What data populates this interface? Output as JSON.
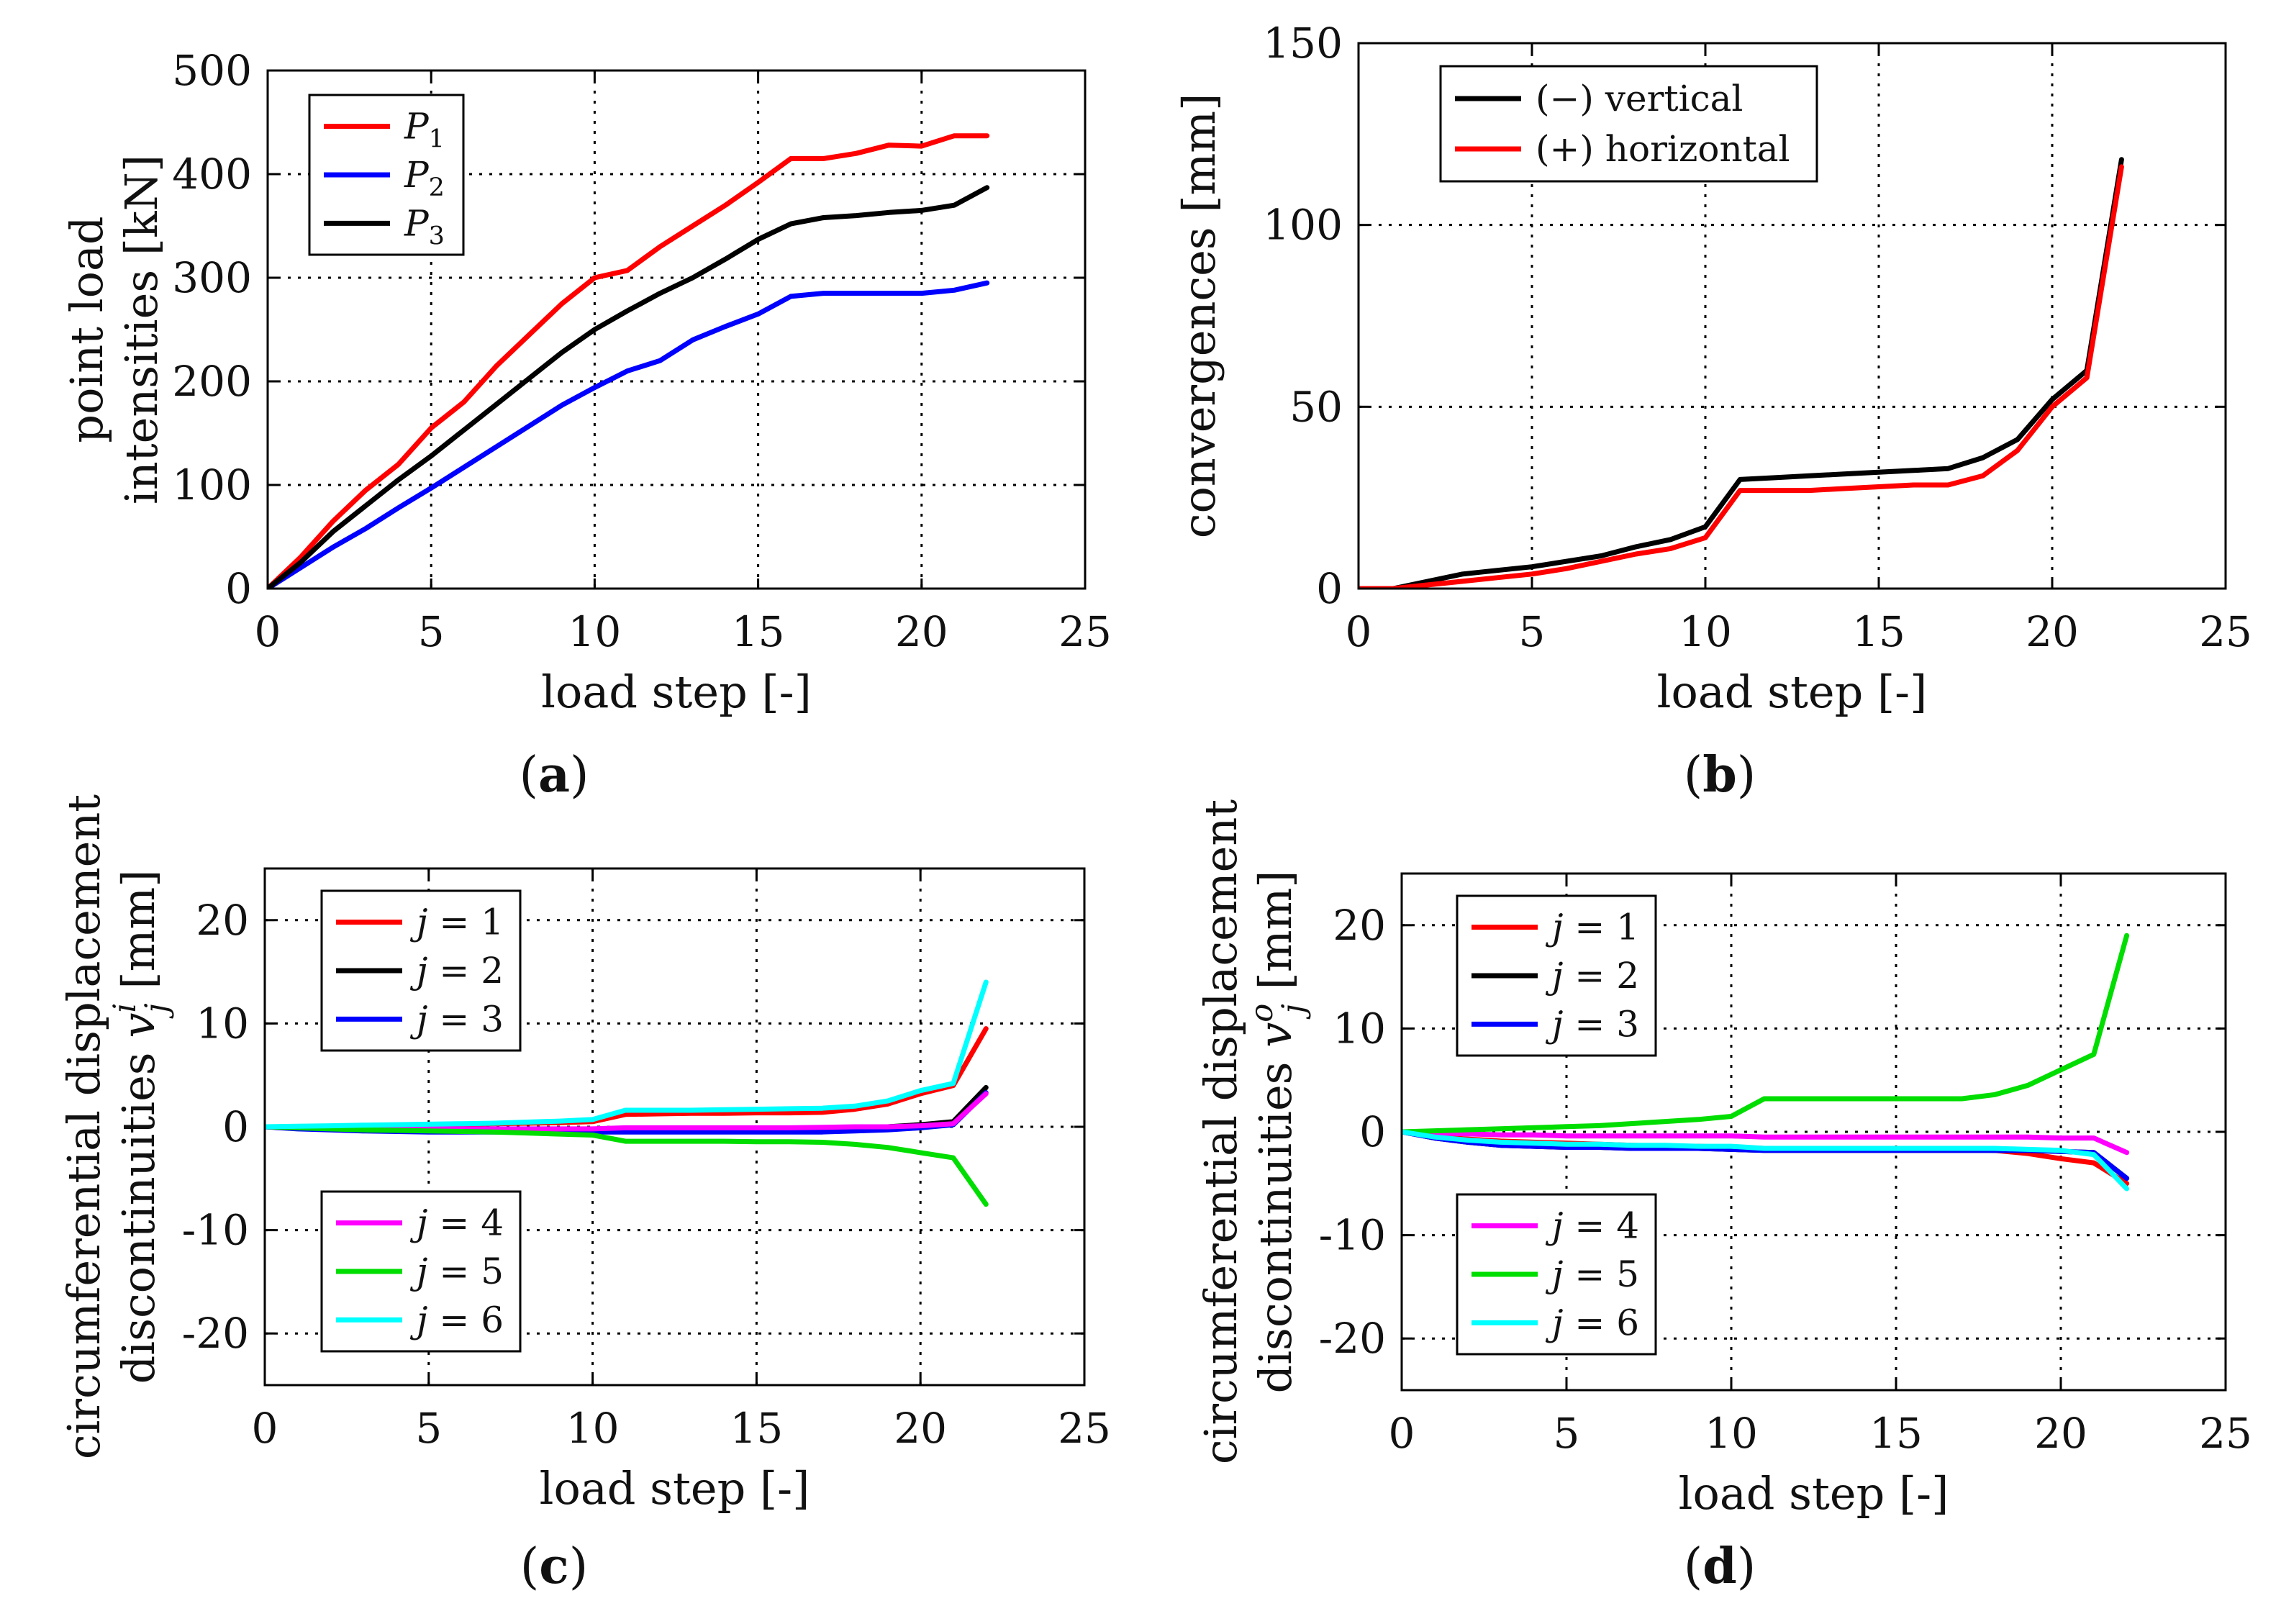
{
  "chart_data": [
    {
      "id": "a",
      "panel_label": "(a)",
      "type": "line",
      "xlabel": "load step [-]",
      "ylabel": [
        "point load",
        "intensities [kN]"
      ],
      "xlim": [
        0,
        25
      ],
      "ylim": [
        0,
        500
      ],
      "xticks": [
        0,
        5,
        10,
        15,
        20,
        25
      ],
      "yticks": [
        0,
        100,
        200,
        300,
        400,
        500
      ],
      "grid": true,
      "legend_position": "top-left",
      "series": [
        {
          "name": "P",
          "subscript": "1",
          "color": "#ff0000",
          "x": [
            0,
            1,
            2,
            3,
            4,
            5,
            6,
            7,
            8,
            9,
            10,
            11,
            12,
            13,
            14,
            15,
            16,
            17,
            18,
            19,
            20,
            21,
            22
          ],
          "y": [
            0,
            30,
            65,
            95,
            120,
            155,
            180,
            215,
            245,
            275,
            300,
            307,
            330,
            350,
            370,
            392,
            415,
            415,
            420,
            428,
            427,
            437,
            437
          ]
        },
        {
          "name": "P",
          "subscript": "2",
          "color": "#0000ff",
          "x": [
            0,
            1,
            2,
            3,
            4,
            5,
            6,
            7,
            8,
            9,
            10,
            11,
            12,
            13,
            14,
            15,
            16,
            17,
            18,
            19,
            20,
            21,
            22
          ],
          "y": [
            0,
            20,
            40,
            58,
            78,
            97,
            117,
            137,
            157,
            177,
            194,
            210,
            220,
            240,
            253,
            265,
            282,
            285,
            285,
            285,
            285,
            288,
            295
          ]
        },
        {
          "name": "P",
          "subscript": "3",
          "color": "#000000",
          "x": [
            0,
            1,
            2,
            3,
            4,
            5,
            6,
            7,
            8,
            9,
            10,
            11,
            12,
            13,
            14,
            15,
            16,
            17,
            18,
            19,
            20,
            21,
            22
          ],
          "y": [
            0,
            25,
            55,
            80,
            105,
            128,
            153,
            178,
            203,
            228,
            250,
            268,
            285,
            300,
            318,
            337,
            352,
            358,
            360,
            363,
            365,
            370,
            387
          ]
        }
      ]
    },
    {
      "id": "b",
      "panel_label": "(b)",
      "type": "line",
      "xlabel": "load step [-]",
      "ylabel": [
        "convergences [mm]"
      ],
      "xlim": [
        0,
        25
      ],
      "ylim": [
        0,
        150
      ],
      "xticks": [
        0,
        5,
        10,
        15,
        20,
        25
      ],
      "yticks": [
        0,
        50,
        100,
        150
      ],
      "grid": true,
      "legend_position": "top-left",
      "series": [
        {
          "name": "(−) vertical",
          "color": "#000000",
          "x": [
            0,
            1,
            2,
            3,
            4,
            5,
            6,
            7,
            8,
            9,
            10,
            11,
            12,
            13,
            14,
            15,
            16,
            17,
            18,
            19,
            20,
            21,
            22
          ],
          "y": [
            0,
            0,
            2,
            4,
            5,
            6,
            7.5,
            9,
            11.5,
            13.5,
            17,
            30,
            30.5,
            31,
            31.5,
            32,
            32.5,
            33,
            36,
            41,
            52,
            60,
            118
          ]
        },
        {
          "name": "(+) horizontal",
          "color": "#ff0000",
          "x": [
            0,
            1,
            2,
            3,
            4,
            5,
            6,
            7,
            8,
            9,
            10,
            11,
            12,
            13,
            14,
            15,
            16,
            17,
            18,
            19,
            20,
            21,
            22
          ],
          "y": [
            0,
            0,
            1,
            2,
            3,
            4,
            5.5,
            7.5,
            9.5,
            11,
            14,
            27,
            27,
            27,
            27.5,
            28,
            28.5,
            28.5,
            31,
            38,
            50,
            58,
            116
          ]
        }
      ]
    },
    {
      "id": "c",
      "panel_label": "(c)",
      "type": "line",
      "xlabel": "load step [-]",
      "ylabel": [
        "circumferential displacement",
        "discontinuities v_j^i [mm]"
      ],
      "xlim": [
        0,
        25
      ],
      "ylim": [
        -25,
        25
      ],
      "xticks": [
        0,
        5,
        10,
        15,
        20,
        25
      ],
      "yticks": [
        -20,
        -10,
        0,
        10,
        20
      ],
      "grid": true,
      "legend_position": "split: top-left and bottom-left",
      "series": [
        {
          "name": "j = 1",
          "color": "#ff0000",
          "x": [
            0,
            1,
            2,
            3,
            4,
            5,
            6,
            7,
            8,
            9,
            10,
            11,
            12,
            13,
            14,
            15,
            16,
            17,
            18,
            19,
            20,
            21,
            22
          ],
          "y": [
            0,
            0,
            0.05,
            0.1,
            0.15,
            0.2,
            0.25,
            0.3,
            0.35,
            0.4,
            0.5,
            1.2,
            1.25,
            1.3,
            1.3,
            1.35,
            1.35,
            1.4,
            1.7,
            2.2,
            3.2,
            4,
            9.5
          ]
        },
        {
          "name": "j = 2",
          "color": "#000000",
          "x": [
            0,
            1,
            2,
            3,
            4,
            5,
            6,
            7,
            8,
            9,
            10,
            11,
            12,
            13,
            14,
            15,
            16,
            17,
            18,
            19,
            20,
            21,
            22
          ],
          "y": [
            0,
            -0.1,
            -0.2,
            -0.25,
            -0.3,
            -0.3,
            -0.3,
            -0.3,
            -0.3,
            -0.3,
            -0.3,
            -0.2,
            -0.2,
            -0.2,
            -0.2,
            -0.2,
            -0.2,
            -0.2,
            -0.1,
            0,
            0.2,
            0.5,
            3.8
          ]
        },
        {
          "name": "j = 3",
          "color": "#0000ff",
          "x": [
            0,
            1,
            2,
            3,
            4,
            5,
            6,
            7,
            8,
            9,
            10,
            11,
            12,
            13,
            14,
            15,
            16,
            17,
            18,
            19,
            20,
            21,
            22
          ],
          "y": [
            0,
            -0.2,
            -0.3,
            -0.4,
            -0.45,
            -0.5,
            -0.5,
            -0.5,
            -0.5,
            -0.5,
            -0.5,
            -0.5,
            -0.5,
            -0.5,
            -0.5,
            -0.5,
            -0.5,
            -0.5,
            -0.4,
            -0.3,
            -0.1,
            0.2,
            3.3
          ]
        },
        {
          "name": "j = 4",
          "color": "#ff00ff",
          "x": [
            0,
            1,
            2,
            3,
            4,
            5,
            6,
            7,
            8,
            9,
            10,
            11,
            12,
            13,
            14,
            15,
            16,
            17,
            18,
            19,
            20,
            21,
            22
          ],
          "y": [
            0,
            -0.1,
            -0.15,
            -0.2,
            -0.2,
            -0.2,
            -0.2,
            -0.2,
            -0.2,
            -0.2,
            -0.2,
            -0.1,
            -0.1,
            -0.1,
            -0.1,
            -0.1,
            -0.1,
            -0.05,
            0,
            0,
            0.1,
            0.3,
            3.2
          ]
        },
        {
          "name": "j = 5",
          "color": "#00dd00",
          "x": [
            0,
            1,
            2,
            3,
            4,
            5,
            6,
            7,
            8,
            9,
            10,
            11,
            12,
            13,
            14,
            15,
            16,
            17,
            18,
            19,
            20,
            21,
            22
          ],
          "y": [
            0,
            -0.1,
            -0.2,
            -0.3,
            -0.35,
            -0.4,
            -0.45,
            -0.5,
            -0.6,
            -0.7,
            -0.8,
            -1.4,
            -1.4,
            -1.4,
            -1.4,
            -1.45,
            -1.45,
            -1.5,
            -1.7,
            -2,
            -2.5,
            -3,
            -7.5
          ]
        },
        {
          "name": "j = 6",
          "color": "#00ffff",
          "x": [
            0,
            1,
            2,
            3,
            4,
            5,
            6,
            7,
            8,
            9,
            10,
            11,
            12,
            13,
            14,
            15,
            16,
            17,
            18,
            19,
            20,
            21,
            22
          ],
          "y": [
            0,
            0.05,
            0.1,
            0.15,
            0.2,
            0.25,
            0.3,
            0.35,
            0.45,
            0.55,
            0.7,
            1.6,
            1.6,
            1.6,
            1.65,
            1.7,
            1.75,
            1.8,
            2,
            2.5,
            3.5,
            4.2,
            14
          ]
        }
      ]
    },
    {
      "id": "d",
      "panel_label": "(d)",
      "type": "line",
      "xlabel": "load step [-]",
      "ylabel": [
        "circumferential displacement",
        "discontinuities v_j^o [mm]"
      ],
      "xlim": [
        0,
        25
      ],
      "ylim": [
        -25,
        25
      ],
      "xticks": [
        0,
        5,
        10,
        15,
        20,
        25
      ],
      "yticks": [
        -20,
        -10,
        0,
        10,
        20
      ],
      "grid": true,
      "legend_position": "split: top-left and bottom-left",
      "series": [
        {
          "name": "j = 1",
          "color": "#ff0000",
          "x": [
            0,
            1,
            2,
            3,
            4,
            5,
            6,
            7,
            8,
            9,
            10,
            11,
            12,
            13,
            14,
            15,
            16,
            17,
            18,
            19,
            20,
            21,
            22
          ],
          "y": [
            0,
            -0.5,
            -0.7,
            -0.9,
            -1,
            -1.1,
            -1.2,
            -1.3,
            -1.4,
            -1.4,
            -1.5,
            -1.6,
            -1.6,
            -1.6,
            -1.6,
            -1.6,
            -1.6,
            -1.7,
            -1.8,
            -2.1,
            -2.6,
            -3,
            -5
          ]
        },
        {
          "name": "j = 2",
          "color": "#000000",
          "x": [
            0,
            1,
            2,
            3,
            4,
            5,
            6,
            7,
            8,
            9,
            10,
            11,
            12,
            13,
            14,
            15,
            16,
            17,
            18,
            19,
            20,
            21,
            22
          ],
          "y": [
            0,
            -0.6,
            -1,
            -1.3,
            -1.4,
            -1.5,
            -1.5,
            -1.6,
            -1.6,
            -1.6,
            -1.7,
            -1.8,
            -1.8,
            -1.8,
            -1.8,
            -1.8,
            -1.8,
            -1.8,
            -1.8,
            -1.8,
            -1.9,
            -2,
            -4.5
          ]
        },
        {
          "name": "j = 3",
          "color": "#0000ff",
          "x": [
            0,
            1,
            2,
            3,
            4,
            5,
            6,
            7,
            8,
            9,
            10,
            11,
            12,
            13,
            14,
            15,
            16,
            17,
            18,
            19,
            20,
            21,
            22
          ],
          "y": [
            0,
            -0.6,
            -1,
            -1.3,
            -1.4,
            -1.5,
            -1.5,
            -1.6,
            -1.6,
            -1.6,
            -1.7,
            -1.8,
            -1.8,
            -1.8,
            -1.8,
            -1.8,
            -1.8,
            -1.8,
            -1.8,
            -1.8,
            -1.9,
            -2,
            -4.5
          ]
        },
        {
          "name": "j = 4",
          "color": "#ff00ff",
          "x": [
            0,
            1,
            2,
            3,
            4,
            5,
            6,
            7,
            8,
            9,
            10,
            11,
            12,
            13,
            14,
            15,
            16,
            17,
            18,
            19,
            20,
            21,
            22
          ],
          "y": [
            0,
            -0.1,
            -0.2,
            -0.3,
            -0.3,
            -0.4,
            -0.4,
            -0.4,
            -0.4,
            -0.4,
            -0.4,
            -0.5,
            -0.5,
            -0.5,
            -0.5,
            -0.5,
            -0.5,
            -0.5,
            -0.5,
            -0.5,
            -0.6,
            -0.6,
            -2
          ]
        },
        {
          "name": "j = 5",
          "color": "#00dd00",
          "x": [
            0,
            1,
            2,
            3,
            4,
            5,
            6,
            7,
            8,
            9,
            10,
            11,
            12,
            13,
            14,
            15,
            16,
            17,
            18,
            19,
            20,
            21,
            22
          ],
          "y": [
            0,
            0.1,
            0.2,
            0.3,
            0.4,
            0.5,
            0.6,
            0.8,
            1,
            1.2,
            1.5,
            3.2,
            3.2,
            3.2,
            3.2,
            3.2,
            3.2,
            3.2,
            3.6,
            4.5,
            6,
            7.5,
            19
          ]
        },
        {
          "name": "j = 6",
          "color": "#00ffff",
          "x": [
            0,
            1,
            2,
            3,
            4,
            5,
            6,
            7,
            8,
            9,
            10,
            11,
            12,
            13,
            14,
            15,
            16,
            17,
            18,
            19,
            20,
            21,
            22
          ],
          "y": [
            0,
            -0.5,
            -0.8,
            -1,
            -1.1,
            -1.2,
            -1.2,
            -1.3,
            -1.3,
            -1.4,
            -1.4,
            -1.6,
            -1.6,
            -1.6,
            -1.6,
            -1.6,
            -1.6,
            -1.6,
            -1.6,
            -1.7,
            -1.8,
            -2.2,
            -5.5
          ]
        }
      ]
    }
  ]
}
